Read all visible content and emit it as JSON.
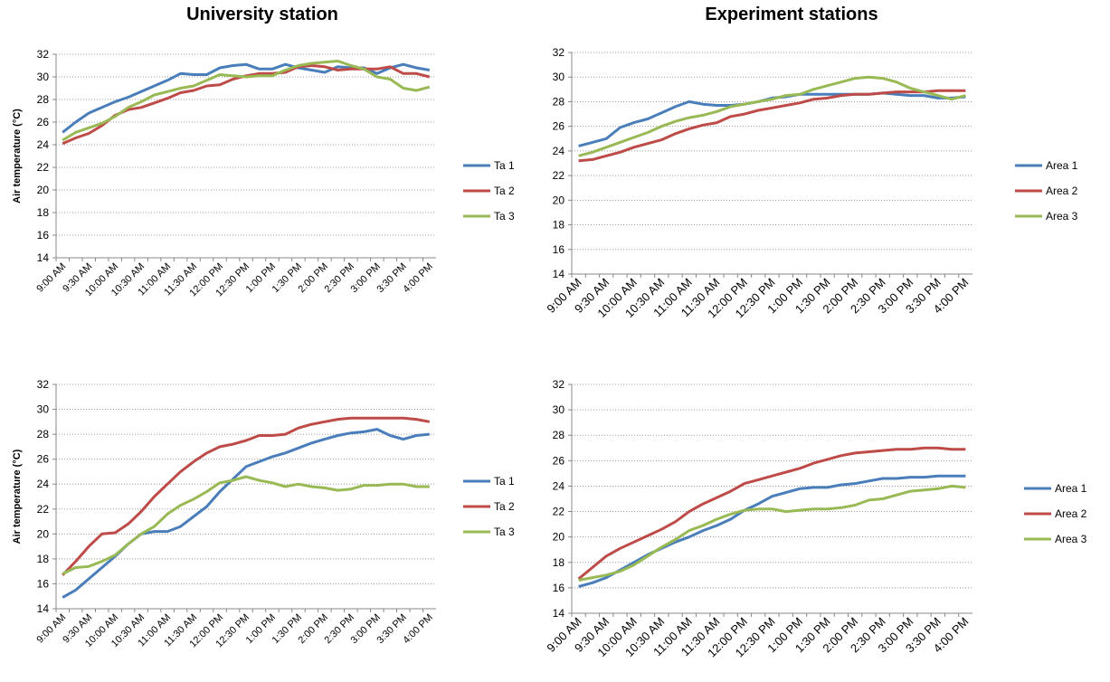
{
  "chart_data": [
    {
      "type": "line",
      "title": "University station",
      "y_label": "Air temperature (°C)",
      "categories": [
        "9:00 AM",
        null,
        "9:30 AM",
        null,
        "10:00 AM",
        null,
        "10:30 AM",
        null,
        "11:00 AM",
        null,
        "11:30 AM",
        null,
        "12:00 PM",
        null,
        "12:30 PM",
        null,
        "1:00 PM",
        null,
        "1:30 PM",
        null,
        "2:00 PM",
        null,
        "2:30 PM",
        null,
        "3:00 PM",
        null,
        "3:30 PM",
        null,
        "4:00 PM"
      ],
      "ylim": [
        14,
        32
      ],
      "yticks": [
        14,
        16,
        18,
        20,
        22,
        24,
        26,
        28,
        30,
        32
      ],
      "grid": true,
      "series": [
        {
          "name": "Ta 1",
          "color": "#4a7ebb",
          "values": [
            25.1,
            26.0,
            26.8,
            27.3,
            27.8,
            28.2,
            28.7,
            29.2,
            29.7,
            30.3,
            30.2,
            30.2,
            30.8,
            31.0,
            31.1,
            30.7,
            30.7,
            31.1,
            30.8,
            30.6,
            30.4,
            30.9,
            30.8,
            30.8,
            30.3,
            30.8,
            31.1,
            30.8,
            30.6
          ]
        },
        {
          "name": "Ta 2",
          "color": "#be4b48",
          "values": [
            24.1,
            24.6,
            25.0,
            25.7,
            26.6,
            27.1,
            27.3,
            27.7,
            28.1,
            28.6,
            28.8,
            29.2,
            29.3,
            29.8,
            30.1,
            30.3,
            30.3,
            30.4,
            30.9,
            31.0,
            30.9,
            30.6,
            30.7,
            30.7,
            30.7,
            30.9,
            30.3,
            30.3,
            30.0
          ]
        },
        {
          "name": "Ta 3",
          "color": "#98b954",
          "values": [
            24.4,
            25.1,
            25.5,
            25.9,
            26.5,
            27.3,
            27.8,
            28.4,
            28.7,
            29.0,
            29.2,
            29.7,
            30.2,
            30.1,
            30.0,
            30.1,
            30.1,
            30.6,
            31.0,
            31.2,
            31.3,
            31.4,
            31.0,
            30.7,
            30.0,
            29.8,
            29.0,
            28.8,
            29.1
          ]
        }
      ]
    },
    {
      "type": "line",
      "title": "Experiment stations",
      "categories": [
        "9:00 AM",
        null,
        "9:30 AM",
        null,
        "10:00 AM",
        null,
        "10:30 AM",
        null,
        "11:00 AM",
        null,
        "11:30 AM",
        null,
        "12:00 PM",
        null,
        "12:30 PM",
        null,
        "1:00 PM",
        null,
        "1:30 PM",
        null,
        "2:00 PM",
        null,
        "2:30 PM",
        null,
        "3:00 PM",
        null,
        "3:30 PM",
        null,
        "4:00 PM"
      ],
      "ylim": [
        14,
        32
      ],
      "yticks": [
        14,
        16,
        18,
        20,
        22,
        24,
        26,
        28,
        30,
        32
      ],
      "grid": true,
      "series": [
        {
          "name": "Area 1",
          "color": "#4a7ebb",
          "values": [
            24.4,
            24.7,
            25.0,
            25.9,
            26.3,
            26.6,
            27.1,
            27.6,
            28.0,
            27.8,
            27.7,
            27.7,
            27.8,
            28.0,
            28.3,
            28.4,
            28.6,
            28.6,
            28.6,
            28.6,
            28.6,
            28.6,
            28.7,
            28.6,
            28.5,
            28.5,
            28.3,
            28.3,
            28.4
          ]
        },
        {
          "name": "Area 2",
          "color": "#be4b48",
          "values": [
            23.2,
            23.3,
            23.6,
            23.9,
            24.3,
            24.6,
            24.9,
            25.4,
            25.8,
            26.1,
            26.3,
            26.8,
            27.0,
            27.3,
            27.5,
            27.7,
            27.9,
            28.2,
            28.3,
            28.5,
            28.6,
            28.6,
            28.7,
            28.8,
            28.8,
            28.8,
            28.9,
            28.9,
            28.9
          ]
        },
        {
          "name": "Area 3",
          "color": "#98b954",
          "values": [
            23.6,
            23.9,
            24.3,
            24.7,
            25.1,
            25.5,
            26.0,
            26.4,
            26.7,
            26.9,
            27.2,
            27.6,
            27.8,
            28.0,
            28.2,
            28.5,
            28.6,
            29.0,
            29.3,
            29.6,
            29.9,
            30.0,
            29.9,
            29.6,
            29.1,
            28.8,
            28.5,
            28.2,
            28.5
          ]
        }
      ]
    },
    {
      "type": "line",
      "y_label": "Air temperature (°C)",
      "categories": [
        "9:00 AM",
        null,
        "9:30 AM",
        null,
        "10:00 AM",
        null,
        "10:30 AM",
        null,
        "11:00 AM",
        null,
        "11:30 AM",
        null,
        "12:00 PM",
        null,
        "12:30 PM",
        null,
        "1:00 PM",
        null,
        "1:30 PM",
        null,
        "2:00 PM",
        null,
        "2:30 PM",
        null,
        "3:00 PM",
        null,
        "3:30 PM",
        null,
        "4:00 PM"
      ],
      "ylim": [
        14,
        32
      ],
      "yticks": [
        14,
        16,
        18,
        20,
        22,
        24,
        26,
        28,
        30,
        32
      ],
      "grid": true,
      "series": [
        {
          "name": "Ta 1",
          "color": "#4a7ebb",
          "values": [
            14.9,
            15.5,
            16.4,
            17.3,
            18.2,
            19.2,
            20.0,
            20.2,
            20.2,
            20.6,
            21.4,
            22.2,
            23.4,
            24.4,
            25.4,
            25.8,
            26.2,
            26.5,
            26.9,
            27.3,
            27.6,
            27.9,
            28.1,
            28.2,
            28.4,
            27.9,
            27.6,
            27.9,
            28.0
          ]
        },
        {
          "name": "Ta 2",
          "color": "#be4b48",
          "values": [
            16.7,
            17.8,
            19.0,
            20.0,
            20.1,
            20.8,
            21.8,
            23.0,
            24.0,
            25.0,
            25.8,
            26.5,
            27.0,
            27.2,
            27.5,
            27.9,
            27.9,
            28.0,
            28.5,
            28.8,
            29.0,
            29.2,
            29.3,
            29.3,
            29.3,
            29.3,
            29.3,
            29.2,
            29.0
          ]
        },
        {
          "name": "Ta 3",
          "color": "#98b954",
          "values": [
            16.8,
            17.3,
            17.4,
            17.8,
            18.3,
            19.2,
            20.0,
            20.6,
            21.6,
            22.3,
            22.8,
            23.4,
            24.1,
            24.3,
            24.6,
            24.3,
            24.1,
            23.8,
            24.0,
            23.8,
            23.7,
            23.5,
            23.6,
            23.9,
            23.9,
            24.0,
            24.0,
            23.8,
            23.8
          ]
        }
      ]
    },
    {
      "type": "line",
      "categories": [
        "9:00 AM",
        null,
        "9:30 AM",
        null,
        "10:00 AM",
        null,
        "10:30 AM",
        null,
        "11:00 AM",
        null,
        "11:30 AM",
        null,
        "12:00 PM",
        null,
        "12:30 PM",
        null,
        "1:00 PM",
        null,
        "1:30 PM",
        null,
        "2:00 PM",
        null,
        "2:30 PM",
        null,
        "3:00 PM",
        null,
        "3:30 PM",
        null,
        "4:00 PM"
      ],
      "ylim": [
        14,
        32
      ],
      "yticks": [
        14,
        16,
        18,
        20,
        22,
        24,
        26,
        28,
        30,
        32
      ],
      "grid": true,
      "series": [
        {
          "name": "Area 1",
          "color": "#4a7ebb",
          "values": [
            16.1,
            16.4,
            16.8,
            17.4,
            18.0,
            18.6,
            19.1,
            19.6,
            20.0,
            20.5,
            20.9,
            21.4,
            22.1,
            22.6,
            23.2,
            23.5,
            23.8,
            23.9,
            23.9,
            24.1,
            24.2,
            24.4,
            24.6,
            24.6,
            24.7,
            24.7,
            24.8,
            24.8,
            24.8
          ]
        },
        {
          "name": "Area 2",
          "color": "#be4b48",
          "values": [
            16.7,
            17.6,
            18.5,
            19.1,
            19.6,
            20.1,
            20.6,
            21.2,
            22.0,
            22.6,
            23.1,
            23.6,
            24.2,
            24.5,
            24.8,
            25.1,
            25.4,
            25.8,
            26.1,
            26.4,
            26.6,
            26.7,
            26.8,
            26.9,
            26.9,
            27.0,
            27.0,
            26.9,
            26.9
          ]
        },
        {
          "name": "Area 3",
          "color": "#98b954",
          "values": [
            16.6,
            16.8,
            17.0,
            17.3,
            17.8,
            18.5,
            19.2,
            19.8,
            20.5,
            20.9,
            21.4,
            21.8,
            22.1,
            22.2,
            22.2,
            22.0,
            22.1,
            22.2,
            22.2,
            22.3,
            22.5,
            22.9,
            23.0,
            23.3,
            23.6,
            23.7,
            23.8,
            24.0,
            23.9
          ]
        }
      ]
    }
  ]
}
